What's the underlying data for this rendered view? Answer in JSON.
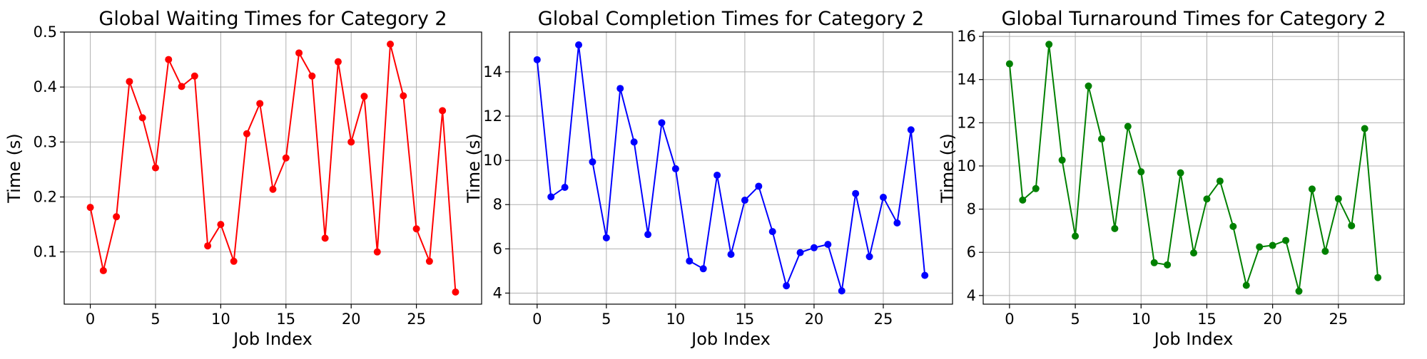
{
  "chart_data": [
    {
      "type": "line",
      "title": "Global Waiting Times for Category 2",
      "xlabel": "Job Index",
      "ylabel": "Time (s)",
      "color": "#ff0000",
      "xlim": [
        -2,
        30
      ],
      "ylim": [
        0.005,
        0.5
      ],
      "xticks": [
        0,
        5,
        10,
        15,
        20,
        25
      ],
      "yticks": [
        0.1,
        0.2,
        0.3,
        0.4,
        0.5
      ],
      "ytick_labels": [
        "0.1",
        "0.2",
        "0.3",
        "0.4",
        "0.5"
      ],
      "grid": true,
      "x": [
        0,
        1,
        2,
        3,
        4,
        5,
        6,
        7,
        8,
        9,
        10,
        11,
        12,
        13,
        14,
        15,
        16,
        17,
        18,
        19,
        20,
        21,
        22,
        23,
        24,
        25,
        26,
        27,
        28
      ],
      "values": [
        0.181,
        0.066,
        0.164,
        0.41,
        0.344,
        0.253,
        0.45,
        0.401,
        0.42,
        0.111,
        0.15,
        0.083,
        0.315,
        0.37,
        0.214,
        0.271,
        0.462,
        0.42,
        0.125,
        0.446,
        0.3,
        0.383,
        0.1,
        0.478,
        0.384,
        0.142,
        0.083,
        0.357,
        0.027
      ]
    },
    {
      "type": "line",
      "title": "Global Completion Times for Category 2",
      "xlabel": "Job Index",
      "ylabel": "Time (s)",
      "color": "#0000ff",
      "xlim": [
        -2,
        30
      ],
      "ylim": [
        3.5,
        15.8
      ],
      "xticks": [
        0,
        5,
        10,
        15,
        20,
        25
      ],
      "yticks": [
        4,
        6,
        8,
        10,
        12,
        14
      ],
      "ytick_labels": [
        "4",
        "6",
        "8",
        "10",
        "12",
        "14"
      ],
      "grid": true,
      "x": [
        0,
        1,
        2,
        3,
        4,
        5,
        6,
        7,
        8,
        9,
        10,
        11,
        12,
        13,
        14,
        15,
        16,
        17,
        18,
        19,
        20,
        21,
        22,
        23,
        24,
        25,
        26,
        27,
        28
      ],
      "values": [
        14.55,
        8.35,
        8.78,
        15.22,
        9.93,
        6.5,
        13.25,
        10.83,
        6.65,
        11.7,
        9.62,
        5.45,
        5.1,
        9.33,
        5.75,
        8.2,
        8.83,
        6.78,
        4.33,
        5.83,
        6.05,
        6.2,
        4.1,
        8.5,
        5.65,
        8.33,
        7.17,
        11.38,
        4.8
      ]
    },
    {
      "type": "line",
      "title": "Global Turnaround Times for Category 2",
      "xlabel": "Job Index",
      "ylabel": "Time (s)",
      "color": "#008000",
      "xlim": [
        -2,
        30
      ],
      "ylim": [
        3.6,
        16.2
      ],
      "xticks": [
        0,
        5,
        10,
        15,
        20,
        25
      ],
      "yticks": [
        4,
        6,
        8,
        10,
        12,
        14,
        16
      ],
      "ytick_labels": [
        "4",
        "6",
        "8",
        "10",
        "12",
        "14",
        "16"
      ],
      "grid": true,
      "x": [
        0,
        1,
        2,
        3,
        4,
        5,
        6,
        7,
        8,
        9,
        10,
        11,
        12,
        13,
        14,
        15,
        16,
        17,
        18,
        19,
        20,
        21,
        22,
        23,
        24,
        25,
        26,
        27,
        28
      ],
      "values": [
        14.73,
        8.42,
        8.95,
        15.63,
        10.27,
        6.75,
        13.7,
        11.25,
        7.1,
        11.83,
        9.73,
        5.52,
        5.42,
        9.68,
        5.97,
        8.47,
        9.3,
        7.2,
        4.47,
        6.25,
        6.32,
        6.55,
        4.2,
        8.93,
        6.05,
        8.48,
        7.23,
        11.73,
        4.83
      ]
    }
  ]
}
